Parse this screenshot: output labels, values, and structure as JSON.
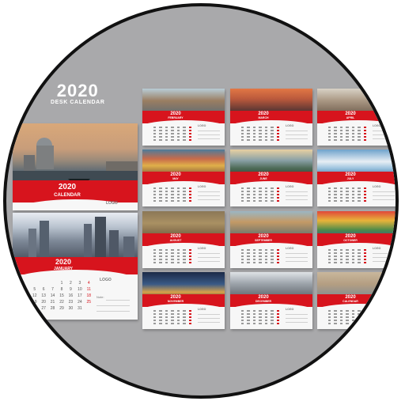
{
  "headline": {
    "year": "2020",
    "subtitle": "DESK CALENDAR"
  },
  "brand_color": "#d7141d",
  "cover": {
    "year": "2020",
    "label": "CALENDAR",
    "logo": "LOGO"
  },
  "january": {
    "year": "2020",
    "month": "JANUARY",
    "logo": "LOGO",
    "days": [
      "1",
      "2",
      "3",
      "4",
      "5",
      "6",
      "7",
      "8",
      "9",
      "10",
      "11",
      "12",
      "13",
      "14",
      "15",
      "16",
      "17",
      "18",
      "19",
      "20",
      "21",
      "22",
      "23",
      "24",
      "25",
      "26",
      "27",
      "28",
      "29",
      "30",
      "31"
    ],
    "notes_label": "Note:"
  },
  "cards": [
    {
      "year": "2020",
      "month": "FEBRUARY",
      "photo": "canal",
      "logo": "LOGO"
    },
    {
      "year": "2020",
      "month": "MARCH",
      "photo": "sunset",
      "logo": "LOGO"
    },
    {
      "year": "2020",
      "month": "APRIL",
      "photo": "street",
      "logo": "LOGO"
    },
    {
      "year": "2020",
      "month": "MAY",
      "photo": "houses",
      "logo": "LOGO"
    },
    {
      "year": "2020",
      "month": "JUNE",
      "photo": "mountain",
      "logo": "LOGO"
    },
    {
      "year": "2020",
      "month": "JULY",
      "photo": "santorini",
      "logo": "LOGO"
    },
    {
      "year": "2020",
      "month": "AUGUST",
      "photo": "aerial",
      "logo": "LOGO"
    },
    {
      "year": "2020",
      "month": "SEPTEMBER",
      "photo": "bridge",
      "logo": "LOGO"
    },
    {
      "year": "2020",
      "month": "OCTOBER",
      "photo": "colorful",
      "logo": "LOGO"
    },
    {
      "year": "2020",
      "month": "NOVEMBER",
      "photo": "night",
      "logo": "LOGO"
    },
    {
      "year": "2020",
      "month": "DECEMBER",
      "photo": "ny",
      "logo": "LOGO"
    },
    {
      "year": "2020",
      "month": "CALENDAR",
      "photo": "venice2",
      "logo": "LOGO"
    }
  ]
}
